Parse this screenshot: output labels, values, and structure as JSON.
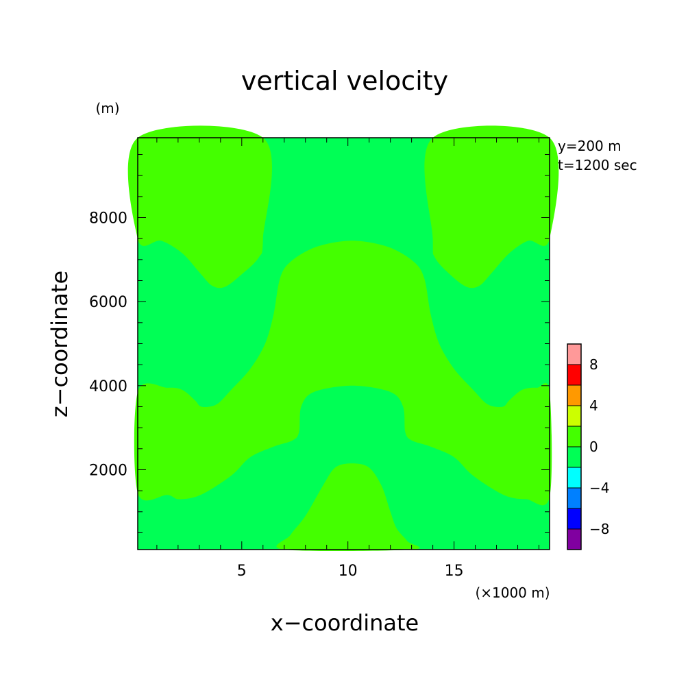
{
  "chart_data": {
    "type": "heatmap",
    "title": "vertical velocity",
    "xlabel": "x−coordinate",
    "ylabel": "z−coordinate",
    "x_unit": "(×1000 m)",
    "y_unit": "(m)",
    "info": [
      "y=200 m",
      "t=1200 sec"
    ],
    "xlim": [
      0.1,
      19.5
    ],
    "ylim": [
      100,
      9900
    ],
    "x_ticks": [
      5,
      10,
      15
    ],
    "x_tick_labels": [
      "5",
      "10",
      "15"
    ],
    "y_ticks": [
      2000,
      4000,
      6000,
      8000
    ],
    "y_tick_labels": [
      "2000",
      "4000",
      "6000",
      "8000"
    ],
    "colorbar": {
      "levels": [
        -10,
        -8,
        -6,
        -4,
        -2,
        0,
        2,
        4,
        6,
        8,
        10
      ],
      "colors": [
        "#8000a0",
        "#0000ff",
        "#0080ff",
        "#00ffff",
        "#00ff55",
        "#44ff00",
        "#ccff00",
        "#ff9900",
        "#ff0000",
        "#ff9999"
      ],
      "tick_labels": [
        "−8",
        "−4",
        "0",
        "4",
        "8"
      ],
      "tick_values": [
        -8,
        -4,
        0,
        4,
        8
      ]
    },
    "background_class_color": "#00ff55",
    "regions": [
      {
        "level": "0 to 2",
        "color": "#44ff00",
        "boundary": [
          [
            0.1,
            9900
          ],
          [
            6.0,
            9900
          ],
          [
            6.0,
            7500
          ],
          [
            5.8,
            7050
          ],
          [
            5.0,
            6650
          ],
          [
            4.2,
            6350
          ],
          [
            3.6,
            6380
          ],
          [
            3.0,
            6700
          ],
          [
            2.2,
            7150
          ],
          [
            1.2,
            7450
          ],
          [
            0.1,
            7500
          ]
        ]
      },
      {
        "level": "0 to 2",
        "color": "#44ff00",
        "boundary": [
          [
            14.0,
            9900
          ],
          [
            19.5,
            9900
          ],
          [
            19.5,
            7500
          ],
          [
            18.5,
            7450
          ],
          [
            17.6,
            7150
          ],
          [
            16.8,
            6700
          ],
          [
            16.2,
            6380
          ],
          [
            15.6,
            6350
          ],
          [
            14.8,
            6650
          ],
          [
            14.1,
            7050
          ],
          [
            14.0,
            7500
          ]
        ]
      },
      {
        "level": "0 to 2",
        "color": "#44ff00",
        "boundary": [
          [
            0.1,
            3850
          ],
          [
            1.5,
            3950
          ],
          [
            2.2,
            3900
          ],
          [
            2.8,
            3650
          ],
          [
            3.1,
            3500
          ],
          [
            3.8,
            3550
          ],
          [
            4.5,
            3900
          ],
          [
            5.4,
            4400
          ],
          [
            6.1,
            5000
          ],
          [
            6.5,
            5700
          ],
          [
            6.8,
            6550
          ],
          [
            7.3,
            6950
          ],
          [
            8.5,
            7300
          ],
          [
            10.2,
            7450
          ],
          [
            11.9,
            7300
          ],
          [
            13.1,
            6950
          ],
          [
            13.6,
            6550
          ],
          [
            13.9,
            5700
          ],
          [
            14.3,
            5000
          ],
          [
            15.0,
            4400
          ],
          [
            15.9,
            3900
          ],
          [
            16.6,
            3550
          ],
          [
            17.3,
            3500
          ],
          [
            17.6,
            3650
          ],
          [
            18.2,
            3900
          ],
          [
            18.9,
            3950
          ],
          [
            19.5,
            3850
          ],
          [
            19.5,
            1350
          ],
          [
            18.4,
            1300
          ],
          [
            17.6,
            1350
          ],
          [
            16.8,
            1550
          ],
          [
            15.8,
            1900
          ],
          [
            15.0,
            2300
          ],
          [
            13.9,
            2550
          ],
          [
            13.0,
            2700
          ],
          [
            12.7,
            2900
          ],
          [
            12.6,
            3500
          ],
          [
            12.0,
            3850
          ],
          [
            10.2,
            4000
          ],
          [
            8.4,
            3850
          ],
          [
            7.8,
            3500
          ],
          [
            7.7,
            2900
          ],
          [
            7.4,
            2700
          ],
          [
            6.5,
            2550
          ],
          [
            5.4,
            2300
          ],
          [
            4.6,
            1900
          ],
          [
            3.6,
            1550
          ],
          [
            2.8,
            1350
          ],
          [
            2.0,
            1300
          ],
          [
            1.5,
            1400
          ],
          [
            0.1,
            1450
          ]
        ]
      },
      {
        "level": "0 to 2",
        "color": "#44ff00",
        "boundary": [
          [
            7.0,
            100
          ],
          [
            7.3,
            450
          ],
          [
            8.0,
            900
          ],
          [
            8.8,
            1600
          ],
          [
            9.4,
            2050
          ],
          [
            10.2,
            2150
          ],
          [
            11.0,
            2050
          ],
          [
            11.6,
            1600
          ],
          [
            12.0,
            1000
          ],
          [
            12.3,
            600
          ],
          [
            12.8,
            300
          ],
          [
            13.0,
            100
          ]
        ]
      }
    ]
  }
}
